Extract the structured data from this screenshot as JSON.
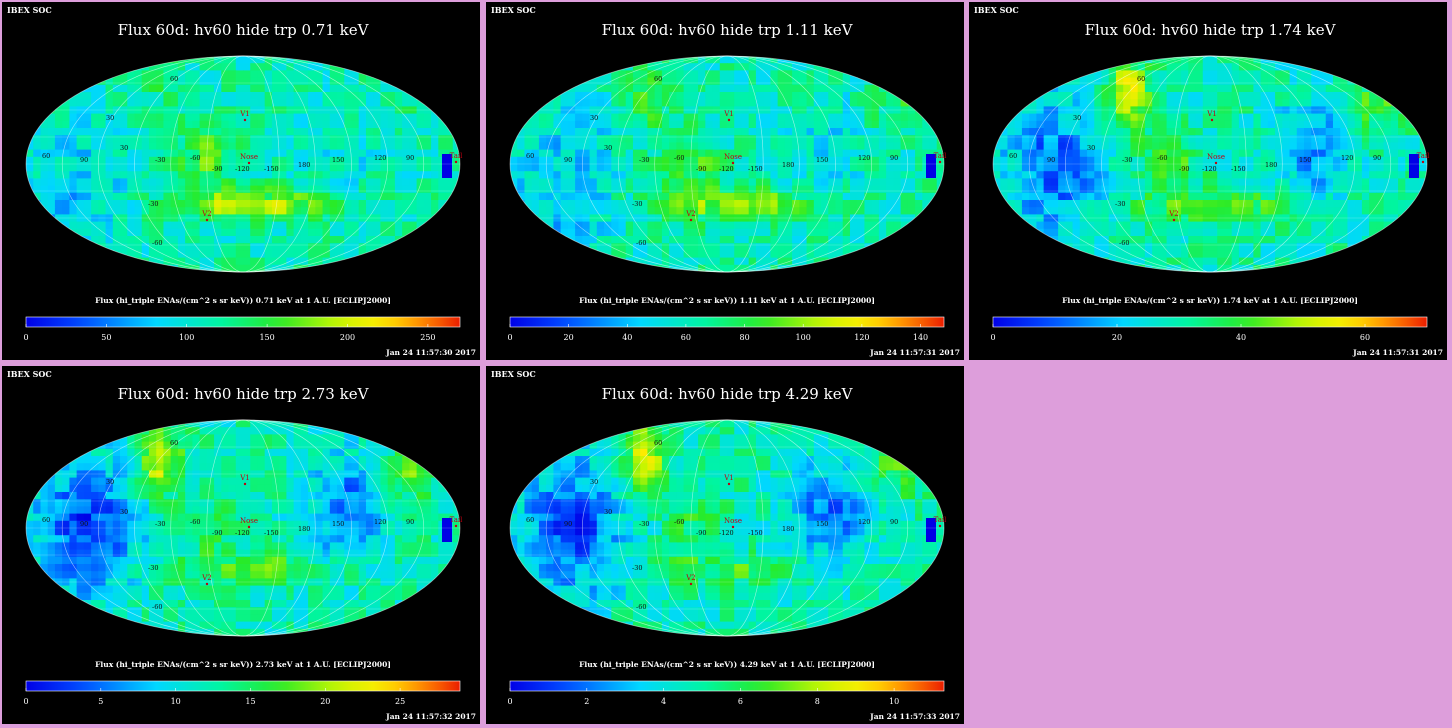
{
  "window": {
    "background": "#dd9edb"
  },
  "chart_data": [
    {
      "type": "heatmap",
      "projection": "Mollweide all-sky",
      "header_left": "IBEX SOC",
      "title": "Flux 60d: hv60 hide trp 0.71 keV",
      "colorbar_label": "Flux (hi_triple ENAs/(cm^2 s sr keV)) 0.71 keV at 1 A.U. [ECLIPJ2000]",
      "colorbar_ticks": [
        "0",
        "50",
        "100",
        "150",
        "200",
        "250"
      ],
      "colorbar_range": [
        0,
        270
      ],
      "timestamp": "Jan 24 11:57:30 2017",
      "lon_labels": [
        "60",
        "90",
        "30",
        "-30",
        "-60",
        "-90",
        "-120",
        "-150",
        "180",
        "150",
        "120",
        "90"
      ],
      "lat_labels": [
        "60",
        "30",
        "-30",
        "-60"
      ],
      "markers": [
        {
          "name": "V1"
        },
        {
          "name": "V2"
        },
        {
          "name": "Nose"
        },
        {
          "name": "Tail"
        }
      ],
      "features": {
        "ribbon": 0.15,
        "belt": 0.8,
        "blue_lobes": 0.25,
        "tail_blue": 1.0
      }
    },
    {
      "type": "heatmap",
      "projection": "Mollweide all-sky",
      "header_left": "IBEX SOC",
      "title": "Flux 60d: hv60 hide trp 1.11 keV",
      "colorbar_label": "Flux (hi_triple ENAs/(cm^2 s sr keV)) 1.11 keV at 1 A.U. [ECLIPJ2000]",
      "colorbar_ticks": [
        "0",
        "20",
        "40",
        "60",
        "80",
        "100",
        "120",
        "140"
      ],
      "colorbar_range": [
        0,
        148
      ],
      "timestamp": "Jan 24 11:57:31 2017",
      "lon_labels": [
        "60",
        "90",
        "30",
        "-30",
        "-60",
        "-90",
        "-120",
        "-150",
        "180",
        "150",
        "120",
        "90"
      ],
      "lat_labels": [
        "60",
        "30",
        "-30",
        "-60"
      ],
      "markers": [
        {
          "name": "V1"
        },
        {
          "name": "V2"
        },
        {
          "name": "Nose"
        },
        {
          "name": "Tail"
        }
      ],
      "features": {
        "ribbon": 0.45,
        "belt": 0.75,
        "blue_lobes": 0.35,
        "tail_blue": 1.0
      }
    },
    {
      "type": "heatmap",
      "projection": "Mollweide all-sky",
      "header_left": "IBEX SOC",
      "title": "Flux 60d: hv60 hide trp 1.74 keV",
      "colorbar_label": "Flux (hi_triple ENAs/(cm^2 s sr keV)) 1.74 keV at 1 A.U. [ECLIPJ2000]",
      "colorbar_ticks": [
        "0",
        "20",
        "40",
        "60"
      ],
      "colorbar_range": [
        0,
        70
      ],
      "timestamp": "Jan 24 11:57:31 2017",
      "lon_labels": [
        "60",
        "90",
        "30",
        "-30",
        "-60",
        "-90",
        "-120",
        "-150",
        "180",
        "150",
        "120",
        "90"
      ],
      "lat_labels": [
        "60",
        "30",
        "-30",
        "-60"
      ],
      "markers": [
        {
          "name": "V1"
        },
        {
          "name": "V2"
        },
        {
          "name": "Nose"
        },
        {
          "name": "Tail"
        }
      ],
      "features": {
        "ribbon": 0.9,
        "belt": 0.6,
        "blue_lobes": 0.8,
        "tail_blue": 1.0
      }
    },
    {
      "type": "heatmap",
      "projection": "Mollweide all-sky",
      "header_left": "IBEX SOC",
      "title": "Flux 60d: hv60 hide trp 2.73 keV",
      "colorbar_label": "Flux (hi_triple ENAs/(cm^2 s sr keV)) 2.73 keV at 1 A.U. [ECLIPJ2000]",
      "colorbar_ticks": [
        "0",
        "5",
        "10",
        "15",
        "20",
        "25"
      ],
      "colorbar_range": [
        0,
        29
      ],
      "timestamp": "Jan 24 11:57:32 2017",
      "lon_labels": [
        "60",
        "90",
        "30",
        "-30",
        "-60",
        "-90",
        "-120",
        "-150",
        "180",
        "150",
        "120",
        "90"
      ],
      "lat_labels": [
        "60",
        "30",
        "-30",
        "-60"
      ],
      "markers": [
        {
          "name": "V1"
        },
        {
          "name": "V2"
        },
        {
          "name": "Nose"
        },
        {
          "name": "Tail"
        }
      ],
      "features": {
        "ribbon": 0.95,
        "belt": 0.55,
        "blue_lobes": 1.0,
        "tail_blue": 1.0
      }
    },
    {
      "type": "heatmap",
      "projection": "Mollweide all-sky",
      "header_left": "IBEX SOC",
      "title": "Flux 60d: hv60 hide trp 4.29 keV",
      "colorbar_label": "Flux (hi_triple ENAs/(cm^2 s sr keV)) 4.29 keV at 1 A.U. [ECLIPJ2000]",
      "colorbar_ticks": [
        "0",
        "2",
        "4",
        "6",
        "8",
        "10"
      ],
      "colorbar_range": [
        0,
        11.3
      ],
      "timestamp": "Jan 24 11:57:33 2017",
      "lon_labels": [
        "60",
        "90",
        "30",
        "-30",
        "-60",
        "-90",
        "-120",
        "-150",
        "180",
        "150",
        "120",
        "90"
      ],
      "lat_labels": [
        "60",
        "30",
        "-30",
        "-60"
      ],
      "markers": [
        {
          "name": "V1"
        },
        {
          "name": "V2"
        },
        {
          "name": "Nose"
        },
        {
          "name": "Tail"
        }
      ],
      "features": {
        "ribbon": 0.85,
        "belt": 0.4,
        "blue_lobes": 1.0,
        "tail_blue": 1.0
      }
    }
  ]
}
